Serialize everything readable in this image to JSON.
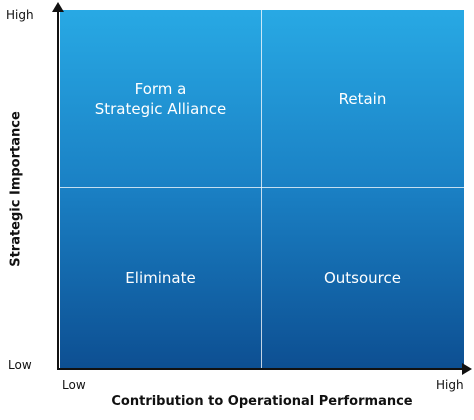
{
  "axes": {
    "y_title": "Strategic Importance",
    "x_title": "Contribution to Operational Performance",
    "y_high": "High",
    "y_low": "Low",
    "x_low": "Low",
    "x_high": "High"
  },
  "quadrants": {
    "top_left": "Form a\nStrategic Alliance",
    "top_right": "Retain",
    "bottom_left": "Eliminate",
    "bottom_right": "Outsource"
  },
  "colors": {
    "gradient_top": "#28a9e4",
    "gradient_mid": "#1a80c4",
    "gradient_bottom": "#0d4f92",
    "label_text": "#ffffff",
    "axis": "#111111"
  }
}
